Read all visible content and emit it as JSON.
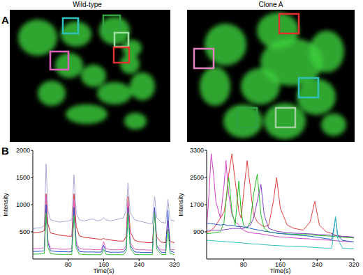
{
  "figure": {
    "panel_labels": [
      "A",
      "B"
    ]
  },
  "chart_data": [
    {
      "type": "line",
      "title": "Wild-type",
      "x_label": "Time(s)",
      "y_label": "Intensity",
      "x": [
        0,
        10,
        20,
        26,
        30,
        34,
        40,
        50,
        60,
        70,
        80,
        88,
        93,
        98,
        105,
        115,
        125,
        135,
        145,
        155,
        160,
        165,
        175,
        185,
        195,
        205,
        211,
        215,
        220,
        230,
        240,
        250,
        260,
        270,
        275,
        280,
        290,
        300,
        305,
        310,
        320
      ],
      "xlim": [
        0,
        320
      ],
      "xticks": [
        80,
        160,
        240,
        320
      ],
      "ylim": [
        0,
        2000
      ],
      "yticks": [
        500,
        1000,
        1500,
        2000
      ],
      "series": [
        {
          "color": "#aaa8d8",
          "values": [
            560,
            570,
            580,
            620,
            1750,
            900,
            720,
            700,
            680,
            690,
            700,
            720,
            1550,
            850,
            720,
            700,
            720,
            740,
            700,
            720,
            760,
            720,
            700,
            720,
            740,
            760,
            900,
            1400,
            850,
            720,
            700,
            680,
            660,
            650,
            1150,
            760,
            680,
            660,
            1100,
            720,
            700
          ]
        },
        {
          "color": "#d03030",
          "values": [
            480,
            490,
            500,
            520,
            1200,
            650,
            480,
            460,
            440,
            430,
            420,
            420,
            1200,
            600,
            430,
            400,
            390,
            380,
            370,
            360,
            380,
            360,
            350,
            340,
            330,
            330,
            420,
            1150,
            500,
            340,
            320,
            310,
            300,
            300,
            800,
            400,
            310,
            300,
            700,
            320,
            300
          ]
        },
        {
          "color": "#e060c0",
          "values": [
            190,
            190,
            200,
            210,
            1150,
            350,
            200,
            190,
            180,
            180,
            180,
            190,
            1100,
            320,
            190,
            180,
            180,
            175,
            170,
            175,
            320,
            190,
            170,
            170,
            170,
            175,
            250,
            1050,
            300,
            180,
            170,
            170,
            165,
            165,
            900,
            250,
            170,
            165,
            700,
            180,
            170
          ]
        },
        {
          "color": "#3050d0",
          "values": [
            140,
            140,
            145,
            150,
            1000,
            300,
            150,
            140,
            135,
            135,
            130,
            135,
            950,
            260,
            140,
            130,
            130,
            130,
            125,
            130,
            250,
            140,
            125,
            125,
            125,
            130,
            200,
            950,
            250,
            130,
            125,
            120,
            120,
            120,
            950,
            230,
            125,
            120,
            900,
            150,
            120
          ]
        },
        {
          "color": "#30c040",
          "values": [
            90,
            90,
            95,
            100,
            850,
            220,
            100,
            90,
            85,
            85,
            85,
            85,
            800,
            200,
            90,
            85,
            80,
            80,
            80,
            80,
            180,
            90,
            80,
            80,
            80,
            80,
            150,
            850,
            200,
            85,
            80,
            80,
            80,
            80,
            850,
            180,
            85,
            80,
            550,
            100,
            80
          ]
        }
      ]
    },
    {
      "type": "line",
      "title": "Clone A",
      "x_label": "Time(s)",
      "y_label": "Intensity",
      "x": [
        0,
        5,
        10,
        15,
        20,
        30,
        38,
        42,
        48,
        55,
        62,
        70,
        75,
        80,
        88,
        95,
        102,
        110,
        118,
        125,
        135,
        145,
        152,
        160,
        175,
        190,
        210,
        225,
        235,
        245,
        260,
        272,
        280,
        285,
        295,
        310,
        320
      ],
      "xlim": [
        0,
        320
      ],
      "xticks": [
        80,
        160,
        240,
        320
      ],
      "ylim": [
        100,
        3300
      ],
      "yticks": [
        900,
        1700,
        2500,
        3300
      ],
      "series": [
        {
          "color": "#d040c0",
          "values": [
            1000,
            2000,
            3200,
            2600,
            1800,
            1300,
            2300,
            3000,
            2000,
            1400,
            1200,
            1100,
            1000,
            950,
            900,
            880,
            860,
            850,
            840,
            820,
            800,
            780,
            760,
            750,
            740,
            720,
            700,
            690,
            680,
            670,
            660,
            650,
            640,
            630,
            620,
            610,
            600
          ]
        },
        {
          "color": "#e04040",
          "values": [
            900,
            900,
            950,
            1000,
            1100,
            1300,
            1500,
            1800,
            2600,
            3200,
            2400,
            1500,
            1300,
            2000,
            3000,
            2200,
            1400,
            1200,
            1100,
            1050,
            1100,
            1800,
            2500,
            1600,
            1100,
            1000,
            950,
            1200,
            1800,
            1100,
            900,
            850,
            800,
            780,
            760,
            740,
            720
          ]
        },
        {
          "color": "#20c020",
          "values": [
            850,
            850,
            860,
            870,
            880,
            900,
            1200,
            1800,
            2500,
            1500,
            1100,
            2400,
            1500,
            1100,
            1000,
            1200,
            2000,
            2600,
            1400,
            1000,
            900,
            880,
            860,
            850,
            840,
            830,
            820,
            810,
            800,
            790,
            780,
            770,
            760,
            750,
            740,
            730,
            720
          ]
        },
        {
          "color": "#8040c0",
          "values": [
            950,
            950,
            950,
            950,
            950,
            950,
            960,
            970,
            980,
            1000,
            1000,
            1000,
            1000,
            1000,
            1050,
            1100,
            1300,
            1800,
            2300,
            1400,
            1000,
            950,
            920,
            900,
            880,
            860,
            850,
            840,
            830,
            820,
            810,
            800,
            790,
            780,
            770,
            760,
            740
          ]
        },
        {
          "color": "#2060c0",
          "values": [
            1150,
            1150,
            1140,
            1130,
            1120,
            1100,
            1120,
            1100,
            1080,
            1100,
            1070,
            1050,
            1060,
            1040,
            1030,
            1000,
            980,
            960,
            940,
            920,
            900,
            880,
            860,
            850,
            830,
            810,
            790,
            770,
            750,
            730,
            700,
            680,
            1300,
            800,
            650,
            620,
            600
          ]
        },
        {
          "color": "#30c0c0",
          "values": [
            650,
            650,
            640,
            640,
            630,
            620,
            620,
            610,
            600,
            600,
            590,
            580,
            580,
            570,
            560,
            550,
            540,
            540,
            530,
            520,
            510,
            500,
            500,
            490,
            480,
            470,
            460,
            450,
            440,
            430,
            420,
            420,
            1350,
            700,
            420,
            410,
            400
          ]
        }
      ]
    }
  ]
}
